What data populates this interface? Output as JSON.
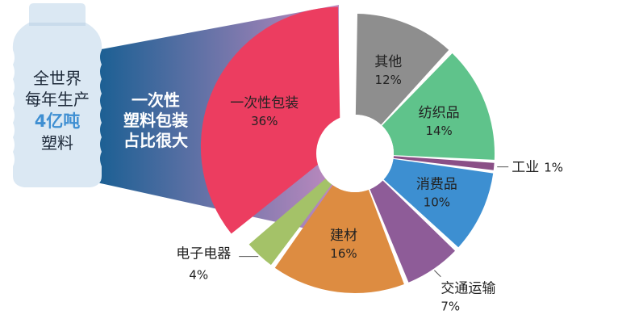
{
  "bottle": {
    "line1": "全世界",
    "line2": "每年生产",
    "line3": "4亿吨",
    "line4": "塑料"
  },
  "funnel": {
    "line1": "一次性",
    "line2": "塑料包装",
    "line3": "占比很大"
  },
  "colors": {
    "bottle": "#dbe8f3",
    "bottle_text": "#1e2a3a",
    "bottle_accent": "#3f8fd2",
    "funnel_start": "#1a5f93",
    "funnel_end": "#c08abf"
  },
  "chart_data": {
    "type": "pie",
    "donut": true,
    "slices": [
      {
        "label": "一次性包装",
        "value": 36,
        "pct": "36%",
        "color": "#ec3d60",
        "exploded": true
      },
      {
        "label": "其他",
        "value": 12,
        "pct": "12%",
        "color": "#8e8e8e"
      },
      {
        "label": "纺织品",
        "value": 14,
        "pct": "14%",
        "color": "#5fc38b"
      },
      {
        "label": "工业",
        "value": 1,
        "pct": "1%",
        "color": "#8a4f86"
      },
      {
        "label": "消费品",
        "value": 10,
        "pct": "10%",
        "color": "#3d8fd1"
      },
      {
        "label": "交通运输",
        "value": 7,
        "pct": "7%",
        "color": "#8e5c98"
      },
      {
        "label": "建材",
        "value": 16,
        "pct": "16%",
        "color": "#dd8c41"
      },
      {
        "label": "电子电器",
        "value": 4,
        "pct": "4%",
        "color": "#a4c268"
      }
    ],
    "title": "",
    "xlabel": "",
    "ylabel": ""
  }
}
